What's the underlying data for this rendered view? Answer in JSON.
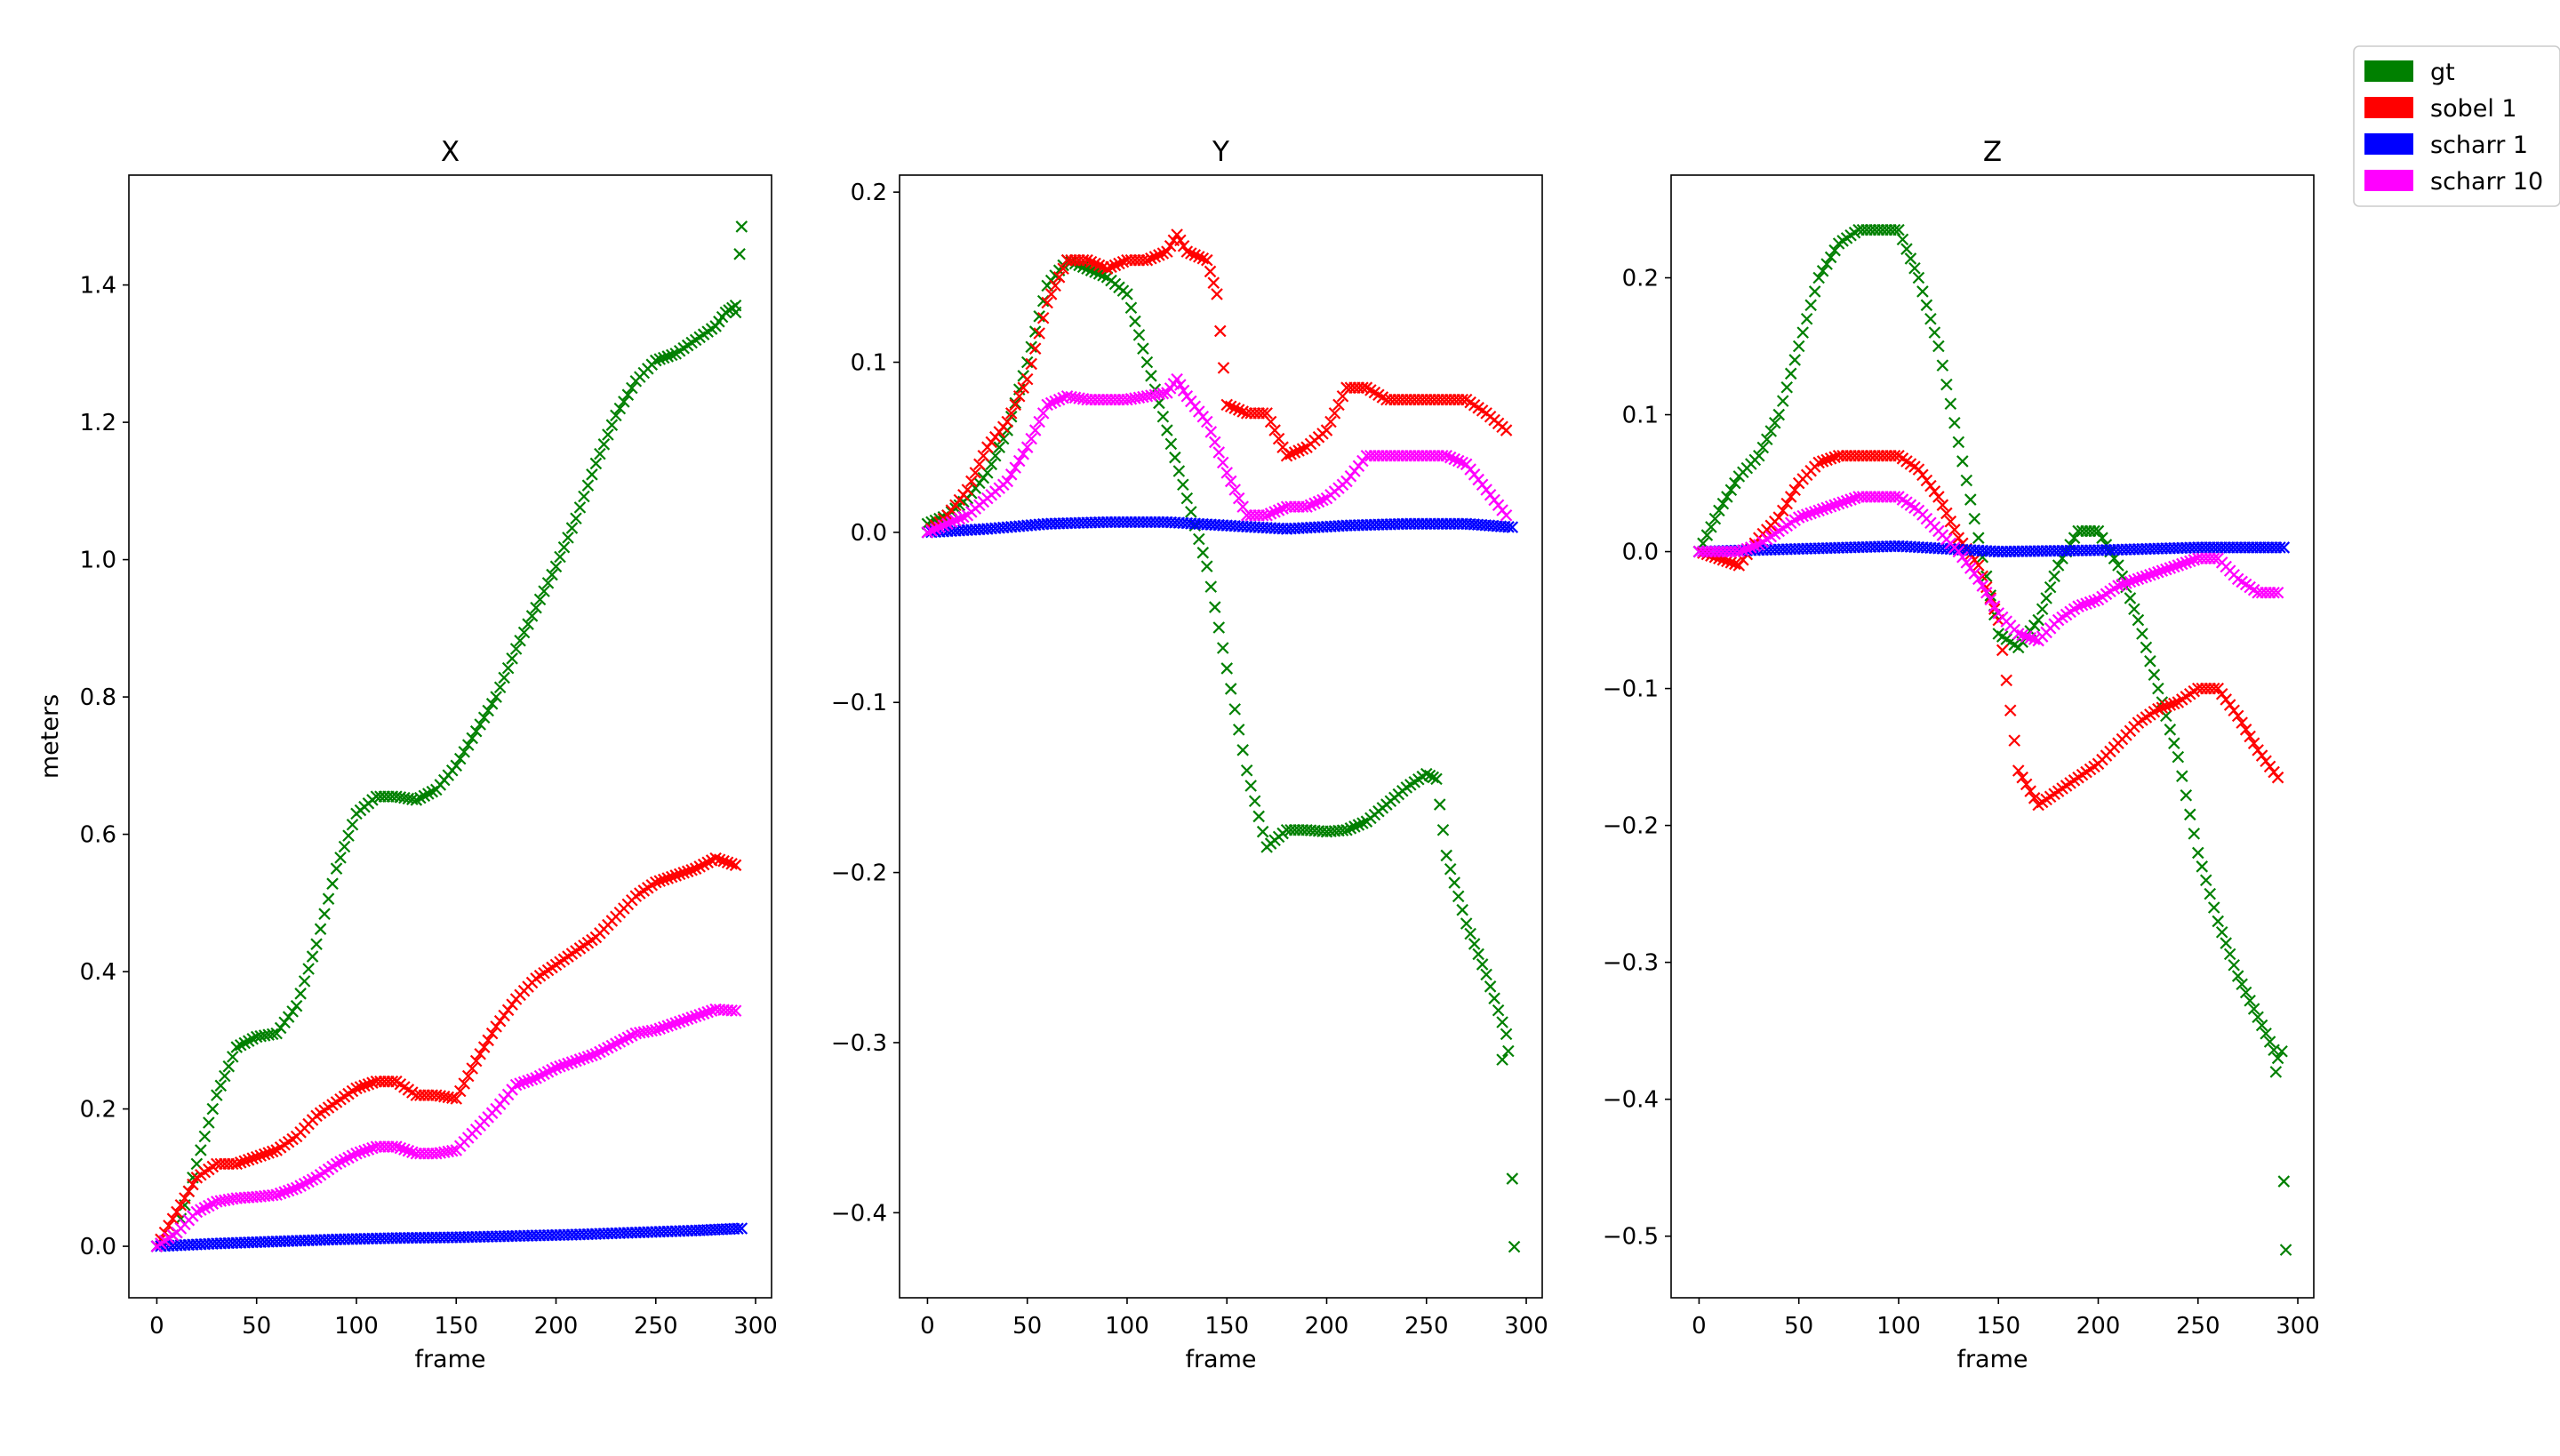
{
  "chart_data": {
    "type": "scatter",
    "marker": "x",
    "legend": {
      "placement": "outside-top-right",
      "entries": [
        {
          "name": "gt",
          "color": "#008000"
        },
        {
          "name": "sobel 1",
          "color": "#ff0000"
        },
        {
          "name": "scharr 1",
          "color": "#0000ff"
        },
        {
          "name": "scharr 10",
          "color": "#ff00ff"
        }
      ]
    },
    "panels": [
      {
        "title": "X",
        "xlabel": "frame",
        "ylabel": "meters",
        "xlim": [
          -14,
          308
        ],
        "ylim": [
          -0.075,
          1.56
        ],
        "xticks": [
          0,
          50,
          100,
          150,
          200,
          250,
          300
        ],
        "yticks": [
          0.0,
          0.2,
          0.4,
          0.6,
          0.8,
          1.0,
          1.2,
          1.4
        ],
        "ytick_labels": [
          "0.0",
          "0.2",
          "0.4",
          "0.6",
          "0.8",
          "1.0",
          "1.2",
          "1.4"
        ],
        "series": [
          {
            "name": "gt",
            "color": "#008000",
            "x": [
              0,
              10,
              20,
              30,
              40,
              50,
              60,
              70,
              80,
              90,
              100,
              110,
              120,
              130,
              140,
              150,
              160,
              170,
              180,
              190,
              200,
              210,
              220,
              230,
              240,
              250,
              260,
              270,
              280,
              285,
              290
            ],
            "y": [
              0.0,
              0.02,
              0.12,
              0.22,
              0.29,
              0.305,
              0.31,
              0.35,
              0.44,
              0.55,
              0.63,
              0.655,
              0.655,
              0.65,
              0.665,
              0.7,
              0.75,
              0.8,
              0.87,
              0.93,
              0.99,
              1.06,
              1.14,
              1.21,
              1.26,
              1.29,
              1.3,
              1.32,
              1.34,
              1.36,
              1.37
            ]
          },
          {
            "name": "gt",
            "color": "#008000",
            "x": [
              290,
              292,
              293
            ],
            "y": [
              1.36,
              1.445,
              1.485
            ]
          },
          {
            "name": "sobel 1",
            "color": "#ff0000",
            "x": [
              0,
              10,
              20,
              30,
              40,
              50,
              60,
              70,
              80,
              90,
              100,
              110,
              120,
              130,
              140,
              150,
              160,
              170,
              180,
              190,
              200,
              210,
              220,
              230,
              240,
              250,
              260,
              270,
              280,
              290
            ],
            "y": [
              0.0,
              0.05,
              0.1,
              0.12,
              0.12,
              0.13,
              0.14,
              0.16,
              0.19,
              0.21,
              0.23,
              0.24,
              0.24,
              0.22,
              0.22,
              0.215,
              0.27,
              0.32,
              0.36,
              0.39,
              0.41,
              0.43,
              0.45,
              0.48,
              0.51,
              0.53,
              0.54,
              0.55,
              0.565,
              0.555
            ]
          },
          {
            "name": "scharr 1",
            "color": "#0000ff",
            "x": [
              0,
              30,
              60,
              90,
              120,
              150,
              180,
              210,
              240,
              270,
              293
            ],
            "y": [
              0.0,
              0.004,
              0.007,
              0.01,
              0.012,
              0.013,
              0.015,
              0.017,
              0.02,
              0.023,
              0.026
            ]
          },
          {
            "name": "scharr 10",
            "color": "#ff00ff",
            "x": [
              0,
              10,
              20,
              30,
              40,
              50,
              60,
              70,
              80,
              90,
              100,
              110,
              120,
              130,
              140,
              150,
              160,
              170,
              180,
              190,
              200,
              210,
              220,
              230,
              240,
              250,
              260,
              270,
              280,
              290
            ],
            "y": [
              0.0,
              0.02,
              0.05,
              0.065,
              0.07,
              0.072,
              0.075,
              0.085,
              0.1,
              0.12,
              0.135,
              0.145,
              0.145,
              0.135,
              0.135,
              0.14,
              0.17,
              0.2,
              0.235,
              0.245,
              0.26,
              0.27,
              0.28,
              0.295,
              0.31,
              0.315,
              0.325,
              0.335,
              0.345,
              0.343
            ]
          }
        ]
      },
      {
        "title": "Y",
        "xlabel": "frame",
        "ylabel": "",
        "xlim": [
          -14,
          308
        ],
        "ylim": [
          -0.45,
          0.21
        ],
        "xticks": [
          0,
          50,
          100,
          150,
          200,
          250,
          300
        ],
        "yticks": [
          -0.4,
          -0.3,
          -0.2,
          -0.1,
          0.0,
          0.1,
          0.2
        ],
        "ytick_labels": [
          "−0.4",
          "−0.3",
          "−0.2",
          "−0.1",
          "0.0",
          "0.1",
          "0.2"
        ],
        "series": [
          {
            "name": "gt",
            "color": "#008000",
            "x": [
              0,
              10,
              20,
              30,
              40,
              50,
              60,
              70,
              80,
              90,
              100,
              110,
              120,
              130,
              140,
              150,
              160,
              170,
              180,
              190,
              200,
              210,
              220,
              230,
              240,
              250,
              255,
              260,
              270,
              280,
              290
            ],
            "y": [
              0.005,
              0.01,
              0.02,
              0.035,
              0.06,
              0.1,
              0.145,
              0.16,
              0.155,
              0.15,
              0.14,
              0.1,
              0.06,
              0.02,
              -0.02,
              -0.08,
              -0.14,
              -0.185,
              -0.175,
              -0.175,
              -0.176,
              -0.175,
              -0.17,
              -0.16,
              -0.15,
              -0.142,
              -0.145,
              -0.19,
              -0.23,
              -0.26,
              -0.295
            ]
          },
          {
            "name": "gt",
            "color": "#008000",
            "x": [
              288,
              291,
              293,
              294
            ],
            "y": [
              -0.31,
              -0.305,
              -0.38,
              -0.42
            ]
          },
          {
            "name": "sobel 1",
            "color": "#ff0000",
            "x": [
              0,
              10,
              20,
              30,
              40,
              50,
              60,
              70,
              80,
              90,
              100,
              110,
              120,
              125,
              130,
              140,
              145,
              150,
              160,
              170,
              180,
              190,
              200,
              210,
              220,
              230,
              240,
              250,
              260,
              270,
              280,
              290
            ],
            "y": [
              0.0,
              0.01,
              0.025,
              0.05,
              0.065,
              0.09,
              0.135,
              0.16,
              0.16,
              0.155,
              0.16,
              0.16,
              0.165,
              0.175,
              0.165,
              0.16,
              0.14,
              0.075,
              0.07,
              0.07,
              0.045,
              0.05,
              0.06,
              0.085,
              0.085,
              0.078,
              0.078,
              0.078,
              0.078,
              0.078,
              0.07,
              0.06
            ]
          },
          {
            "name": "scharr 1",
            "color": "#0000ff",
            "x": [
              0,
              30,
              60,
              90,
              120,
              150,
              180,
              210,
              240,
              270,
              293
            ],
            "y": [
              0.0,
              0.002,
              0.005,
              0.006,
              0.006,
              0.004,
              0.002,
              0.004,
              0.005,
              0.005,
              0.003
            ]
          },
          {
            "name": "scharr 10",
            "color": "#ff00ff",
            "x": [
              0,
              10,
              20,
              30,
              40,
              50,
              60,
              70,
              80,
              90,
              100,
              110,
              120,
              125,
              130,
              140,
              150,
              160,
              170,
              180,
              190,
              200,
              210,
              220,
              230,
              240,
              250,
              260,
              270,
              280,
              290
            ],
            "y": [
              0.0,
              0.005,
              0.01,
              0.02,
              0.03,
              0.05,
              0.075,
              0.08,
              0.078,
              0.078,
              0.078,
              0.08,
              0.082,
              0.09,
              0.08,
              0.065,
              0.035,
              0.01,
              0.01,
              0.015,
              0.015,
              0.02,
              0.03,
              0.045,
              0.045,
              0.045,
              0.045,
              0.045,
              0.04,
              0.025,
              0.01
            ]
          }
        ]
      },
      {
        "title": "Z",
        "xlabel": "frame",
        "ylabel": "",
        "xlim": [
          -14,
          308
        ],
        "ylim": [
          -0.545,
          0.275
        ],
        "xticks": [
          0,
          50,
          100,
          150,
          200,
          250,
          300
        ],
        "yticks": [
          -0.5,
          -0.4,
          -0.3,
          -0.2,
          -0.1,
          0.0,
          0.1,
          0.2
        ],
        "ytick_labels": [
          "−0.5",
          "−0.4",
          "−0.3",
          "−0.2",
          "−0.1",
          "0.0",
          "0.1",
          "0.2"
        ],
        "series": [
          {
            "name": "gt",
            "color": "#008000",
            "x": [
              0,
              10,
              20,
              30,
              40,
              50,
              60,
              70,
              80,
              90,
              100,
              110,
              120,
              130,
              140,
              150,
              160,
              170,
              180,
              190,
              200,
              210,
              220,
              230,
              240,
              250,
              260,
              270,
              280,
              290
            ],
            "y": [
              0.0,
              0.03,
              0.055,
              0.07,
              0.1,
              0.15,
              0.2,
              0.225,
              0.235,
              0.235,
              0.235,
              0.2,
              0.15,
              0.08,
              0.01,
              -0.06,
              -0.07,
              -0.05,
              -0.01,
              0.015,
              0.015,
              -0.01,
              -0.05,
              -0.1,
              -0.15,
              -0.22,
              -0.27,
              -0.31,
              -0.34,
              -0.37
            ]
          },
          {
            "name": "gt",
            "color": "#008000",
            "x": [
              289,
              292,
              293,
              294
            ],
            "y": [
              -0.38,
              -0.365,
              -0.46,
              -0.51
            ]
          },
          {
            "name": "sobel 1",
            "color": "#ff0000",
            "x": [
              0,
              10,
              20,
              30,
              40,
              50,
              60,
              70,
              80,
              90,
              100,
              110,
              120,
              130,
              140,
              150,
              160,
              170,
              180,
              190,
              200,
              210,
              220,
              230,
              240,
              250,
              260,
              270,
              280,
              290
            ],
            "y": [
              0.0,
              -0.005,
              -0.01,
              0.01,
              0.025,
              0.05,
              0.065,
              0.07,
              0.07,
              0.07,
              0.07,
              0.06,
              0.04,
              0.01,
              -0.01,
              -0.05,
              -0.16,
              -0.185,
              -0.175,
              -0.165,
              -0.155,
              -0.14,
              -0.125,
              -0.115,
              -0.11,
              -0.1,
              -0.1,
              -0.12,
              -0.145,
              -0.165
            ]
          },
          {
            "name": "scharr 1",
            "color": "#0000ff",
            "x": [
              0,
              50,
              100,
              150,
              200,
              250,
              293
            ],
            "y": [
              0.0,
              0.002,
              0.004,
              0.0,
              0.001,
              0.003,
              0.003
            ]
          },
          {
            "name": "scharr 10",
            "color": "#ff00ff",
            "x": [
              0,
              10,
              20,
              30,
              40,
              50,
              60,
              70,
              80,
              90,
              100,
              110,
              120,
              130,
              140,
              150,
              160,
              170,
              180,
              190,
              200,
              210,
              220,
              230,
              240,
              250,
              260,
              270,
              280,
              290
            ],
            "y": [
              0.0,
              0.0,
              0.0,
              0.005,
              0.015,
              0.025,
              0.03,
              0.035,
              0.04,
              0.04,
              0.04,
              0.03,
              0.015,
              0.0,
              -0.02,
              -0.045,
              -0.06,
              -0.065,
              -0.05,
              -0.04,
              -0.035,
              -0.025,
              -0.02,
              -0.015,
              -0.01,
              -0.005,
              -0.005,
              -0.02,
              -0.03,
              -0.03
            ]
          }
        ]
      }
    ]
  }
}
